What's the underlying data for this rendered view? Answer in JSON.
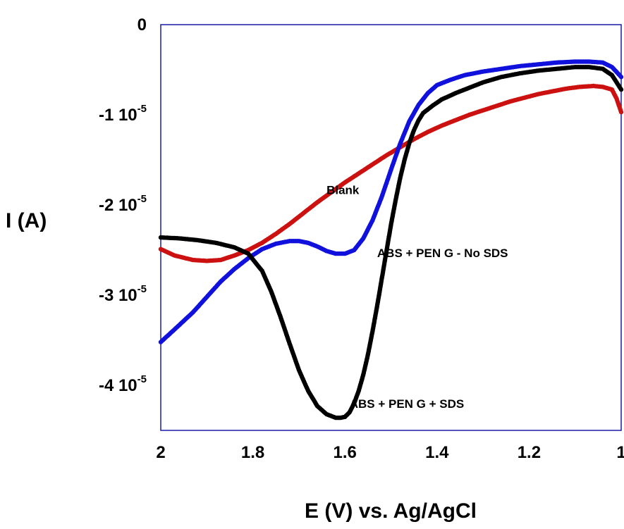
{
  "chart_data": {
    "type": "scatter",
    "title": "",
    "xlabel": "E (V) vs. Ag/AgCl",
    "ylabel": "I (A)",
    "xlim": [
      2,
      1
    ],
    "ylim": [
      -4.5e-05,
      0
    ],
    "x_reversed": true,
    "grid": false,
    "x_ticks": [
      {
        "value": 2,
        "label": "2"
      },
      {
        "value": 1.8,
        "label": "1.8"
      },
      {
        "value": 1.6,
        "label": "1.6"
      },
      {
        "value": 1.4,
        "label": "1.4"
      },
      {
        "value": 1.2,
        "label": "1.2"
      },
      {
        "value": 1,
        "label": "1"
      }
    ],
    "y_ticks": [
      {
        "value": 0,
        "mant": "0",
        "exp": ""
      },
      {
        "value": -1e-05,
        "mant": "-1 10",
        "exp": "-5"
      },
      {
        "value": -2e-05,
        "mant": "-2 10",
        "exp": "-5"
      },
      {
        "value": -3e-05,
        "mant": "-3 10",
        "exp": "-5"
      },
      {
        "value": -4e-05,
        "mant": "-4 10",
        "exp": "-5"
      }
    ],
    "series": [
      {
        "name": "Blank",
        "color": "#cc1111",
        "label_at": [
          1.64,
          -1.88e-05
        ],
        "x": [
          2.0,
          1.97,
          1.93,
          1.9,
          1.87,
          1.84,
          1.81,
          1.78,
          1.75,
          1.72,
          1.69,
          1.66,
          1.63,
          1.6,
          1.57,
          1.54,
          1.51,
          1.48,
          1.45,
          1.42,
          1.39,
          1.36,
          1.33,
          1.3,
          1.27,
          1.24,
          1.21,
          1.18,
          1.15,
          1.12,
          1.09,
          1.06,
          1.04,
          1.02,
          1.01,
          1.0
        ],
        "values": [
          -2.49e-05,
          -2.56e-05,
          -2.61e-05,
          -2.62e-05,
          -2.61e-05,
          -2.56e-05,
          -2.5e-05,
          -2.42e-05,
          -2.32e-05,
          -2.21e-05,
          -2.09e-05,
          -1.97e-05,
          -1.86e-05,
          -1.75e-05,
          -1.65e-05,
          -1.55e-05,
          -1.45e-05,
          -1.36e-05,
          -1.27e-05,
          -1.19e-05,
          -1.12e-05,
          -1.06e-05,
          -1e-05,
          -9.5e-06,
          -9e-06,
          -8.5e-06,
          -8.1e-06,
          -7.7e-06,
          -7.4e-06,
          -7.1e-06,
          -6.9e-06,
          -6.8e-06,
          -6.9e-06,
          -7.2e-06,
          -8.2e-06,
          -9.7e-06
        ]
      },
      {
        "name": "ABS + PEN G - No SDS",
        "color": "#1111dd",
        "label_at": [
          1.53,
          -2.58e-05
        ],
        "x": [
          2.0,
          1.97,
          1.93,
          1.9,
          1.87,
          1.84,
          1.81,
          1.78,
          1.75,
          1.72,
          1.7,
          1.68,
          1.66,
          1.64,
          1.62,
          1.6,
          1.58,
          1.56,
          1.54,
          1.52,
          1.5,
          1.48,
          1.46,
          1.44,
          1.42,
          1.4,
          1.37,
          1.34,
          1.3,
          1.26,
          1.22,
          1.18,
          1.14,
          1.1,
          1.07,
          1.04,
          1.02,
          1.0
        ],
        "values": [
          -3.52e-05,
          -3.38e-05,
          -3.19e-05,
          -3.02e-05,
          -2.85e-05,
          -2.71e-05,
          -2.59e-05,
          -2.49e-05,
          -2.43e-05,
          -2.4e-05,
          -2.4e-05,
          -2.42e-05,
          -2.46e-05,
          -2.51e-05,
          -2.54e-05,
          -2.54e-05,
          -2.5e-05,
          -2.37e-05,
          -2.17e-05,
          -1.91e-05,
          -1.61e-05,
          -1.32e-05,
          -1.07e-05,
          -8.9e-06,
          -7.6e-06,
          -6.7e-06,
          -6.1e-06,
          -5.6e-06,
          -5.2e-06,
          -4.9e-06,
          -4.6e-06,
          -4.4e-06,
          -4.2e-06,
          -4.1e-06,
          -4.1e-06,
          -4.2e-06,
          -4.7e-06,
          -5.8e-06
        ]
      },
      {
        "name": "ABS + PEN G + SDS",
        "color": "#000000",
        "label_at": [
          1.59,
          -4.25e-05
        ],
        "x": [
          2.0,
          1.96,
          1.92,
          1.88,
          1.84,
          1.81,
          1.78,
          1.76,
          1.74,
          1.72,
          1.7,
          1.68,
          1.66,
          1.64,
          1.62,
          1.61,
          1.6,
          1.59,
          1.58,
          1.57,
          1.56,
          1.55,
          1.54,
          1.53,
          1.52,
          1.51,
          1.5,
          1.49,
          1.48,
          1.47,
          1.46,
          1.45,
          1.44,
          1.43,
          1.41,
          1.39,
          1.36,
          1.33,
          1.3,
          1.26,
          1.22,
          1.18,
          1.14,
          1.1,
          1.07,
          1.04,
          1.02,
          1.0
        ],
        "values": [
          -2.36e-05,
          -2.37e-05,
          -2.39e-05,
          -2.42e-05,
          -2.47e-05,
          -2.54e-05,
          -2.73e-05,
          -2.96e-05,
          -3.24e-05,
          -3.54e-05,
          -3.83e-05,
          -4.06e-05,
          -4.23e-05,
          -4.32e-05,
          -4.36e-05,
          -4.36e-05,
          -4.35e-05,
          -4.3e-05,
          -4.2e-05,
          -4.06e-05,
          -3.88e-05,
          -3.66e-05,
          -3.4e-05,
          -3.12e-05,
          -2.82e-05,
          -2.52e-05,
          -2.22e-05,
          -1.95e-05,
          -1.7e-05,
          -1.49e-05,
          -1.31e-05,
          -1.17e-05,
          -1.06e-05,
          -9.8e-06,
          -9e-06,
          -8.3e-06,
          -7.6e-06,
          -7e-06,
          -6.4e-06,
          -5.8e-06,
          -5.4e-06,
          -5.1e-06,
          -4.9e-06,
          -4.7e-06,
          -4.7e-06,
          -4.9e-06,
          -5.6e-06,
          -7.2e-06
        ]
      }
    ]
  }
}
